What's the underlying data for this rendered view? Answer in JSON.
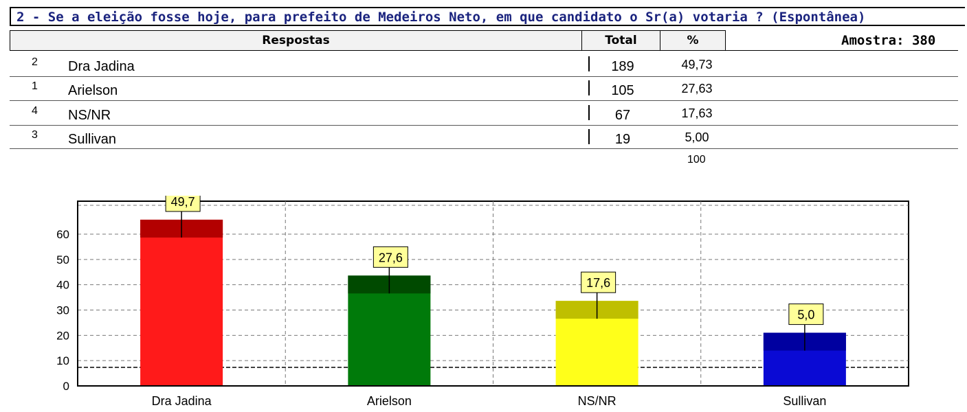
{
  "title": "2 - Se a eleição fosse hoje, para prefeito de Medeiros Neto, em que candidato o Sr(a) votaria ?   (Espontânea)",
  "table": {
    "headers": {
      "respostas": "Respostas",
      "total": "Total",
      "pct": "%"
    },
    "amostra": "Amostra: 380",
    "rows": [
      {
        "rank": "2",
        "name": "Dra Jadina",
        "total": "189",
        "pct": "49,73"
      },
      {
        "rank": "1",
        "name": "Arielson",
        "total": "105",
        "pct": "27,63"
      },
      {
        "rank": "4",
        "name": "NS/NR",
        "total": "67",
        "pct": "17,63"
      },
      {
        "rank": "3",
        "name": "Sullivan",
        "total": "19",
        "pct": "5,00"
      }
    ],
    "sum": "100"
  },
  "chart_data": {
    "type": "bar",
    "categories": [
      "Dra Jadina",
      "Arielson",
      "NS/NR",
      "Sullivan"
    ],
    "values": [
      49.7,
      27.6,
      17.6,
      5.0
    ],
    "data_labels": [
      "49,7",
      "27,6",
      "17,6",
      "5,0"
    ],
    "yticks": [
      "0",
      "10",
      "20",
      "30",
      "40",
      "50",
      "60"
    ],
    "ylim": [
      0,
      60
    ],
    "grid": true,
    "colors": {
      "Dra Jadina": "#ff1a1a",
      "Arielson": "#007a0a",
      "NS/NR": "#ffff1a",
      "Sullivan": "#0a0ad4"
    },
    "cap_colors": {
      "Dra Jadina": "#b30000",
      "Arielson": "#004a00",
      "NS/NR": "#bfbf00",
      "Sullivan": "#0000a0"
    },
    "label_bg": "#ffff99"
  }
}
